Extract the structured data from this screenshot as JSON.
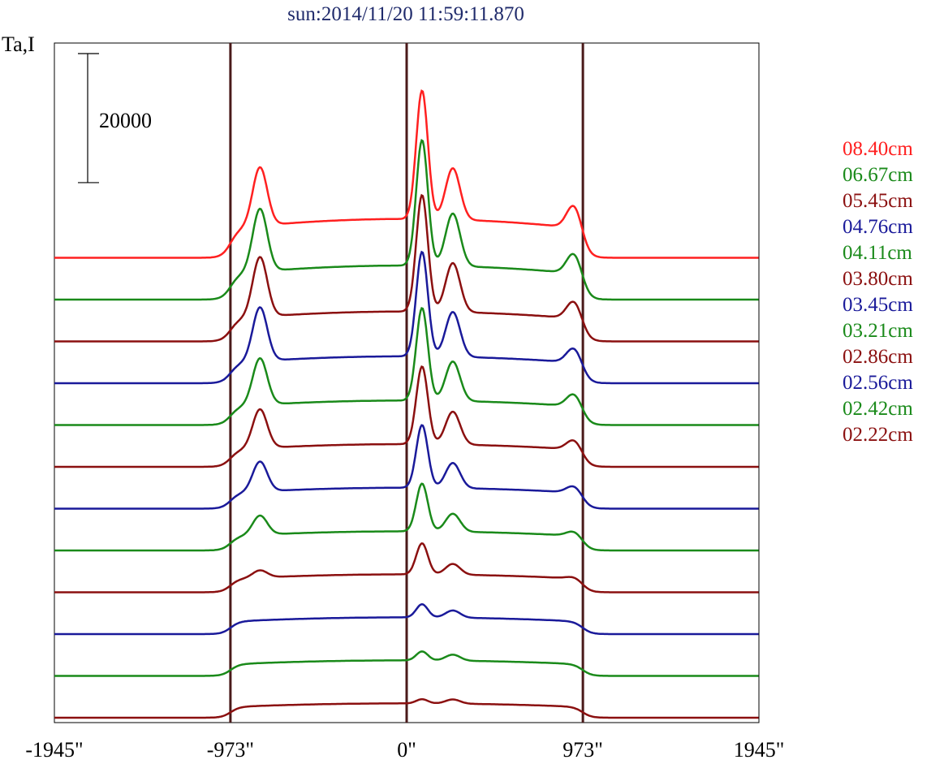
{
  "chart_data": {
    "type": "line",
    "title": "sun:2014/11/20 11:59:11.870",
    "ylabel": "Ta,I",
    "scale_bar_label": "20000",
    "scale_bar_value": 20000,
    "xlim": [
      -1945,
      1945
    ],
    "x_ticks": [
      -1945,
      -973,
      0,
      973,
      1945
    ],
    "x_tick_labels": [
      "-1945\"",
      "-973\"",
      "0\"",
      "973\"",
      "1945\""
    ],
    "vlines": [
      -973,
      0,
      973
    ],
    "grid": false,
    "legend_position": "right",
    "offset_per_series": 7000,
    "colors": {
      "red": "#ff2020",
      "green": "#1a8a1a",
      "darkred": "#8b1010",
      "blue": "#1a1a9a",
      "vline": "#4a1a1a"
    },
    "series": [
      {
        "name": "02.22cm",
        "color": "#8b1010",
        "baseline": 0,
        "limb_height": 2400,
        "peaks": [
          [
            -810,
            0
          ],
          [
            85,
            700
          ],
          [
            255,
            700
          ],
          [
            925,
            0
          ]
        ]
      },
      {
        "name": "02.42cm",
        "color": "#1a8a1a",
        "baseline": 7000,
        "limb_height": 2600,
        "peaks": [
          [
            -810,
            0
          ],
          [
            85,
            1500
          ],
          [
            255,
            1000
          ],
          [
            925,
            0
          ]
        ]
      },
      {
        "name": "02.56cm",
        "color": "#1a1a9a",
        "baseline": 14000,
        "limb_height": 2800,
        "peaks": [
          [
            -810,
            0
          ],
          [
            85,
            2200
          ],
          [
            255,
            1200
          ],
          [
            925,
            0
          ]
        ]
      },
      {
        "name": "02.86cm",
        "color": "#8b1010",
        "baseline": 21000,
        "limb_height": 3000,
        "peaks": [
          [
            -810,
            1200
          ],
          [
            85,
            5200
          ],
          [
            255,
            1800
          ],
          [
            925,
            400
          ]
        ]
      },
      {
        "name": "03.21cm",
        "color": "#1a8a1a",
        "baseline": 28000,
        "limb_height": 3200,
        "peaks": [
          [
            -810,
            3200
          ],
          [
            85,
            8000
          ],
          [
            255,
            3000
          ],
          [
            925,
            900
          ]
        ]
      },
      {
        "name": "03.45cm",
        "color": "#1a1a9a",
        "baseline": 35000,
        "limb_height": 3500,
        "peaks": [
          [
            -810,
            5000
          ],
          [
            85,
            10500
          ],
          [
            255,
            4200
          ],
          [
            925,
            1300
          ]
        ]
      },
      {
        "name": "03.80cm",
        "color": "#8b1010",
        "baseline": 42000,
        "limb_height": 3800,
        "peaks": [
          [
            -810,
            6500
          ],
          [
            85,
            13000
          ],
          [
            255,
            5500
          ],
          [
            925,
            1800
          ]
        ]
      },
      {
        "name": "04.11cm",
        "color": "#1a8a1a",
        "baseline": 49000,
        "limb_height": 4100,
        "peaks": [
          [
            -810,
            7800
          ],
          [
            85,
            15500
          ],
          [
            255,
            6600
          ],
          [
            925,
            2300
          ]
        ]
      },
      {
        "name": "04.76cm",
        "color": "#1a1a9a",
        "baseline": 56000,
        "limb_height": 4500,
        "peaks": [
          [
            -810,
            9000
          ],
          [
            85,
            17500
          ],
          [
            255,
            7500
          ],
          [
            925,
            2700
          ]
        ]
      },
      {
        "name": "05.45cm",
        "color": "#8b1010",
        "baseline": 63000,
        "limb_height": 5000,
        "peaks": [
          [
            -810,
            10000
          ],
          [
            85,
            19500
          ],
          [
            255,
            8200
          ],
          [
            925,
            3200
          ]
        ]
      },
      {
        "name": "06.67cm",
        "color": "#1a8a1a",
        "baseline": 70000,
        "limb_height": 5700,
        "peaks": [
          [
            -810,
            10500
          ],
          [
            85,
            21000
          ],
          [
            255,
            8800
          ],
          [
            925,
            3700
          ]
        ]
      },
      {
        "name": "08.40cm",
        "color": "#ff2020",
        "baseline": 77000,
        "limb_height": 6500,
        "peaks": [
          [
            -810,
            9800
          ],
          [
            85,
            21500
          ],
          [
            255,
            8600
          ],
          [
            925,
            4200
          ]
        ]
      }
    ]
  }
}
